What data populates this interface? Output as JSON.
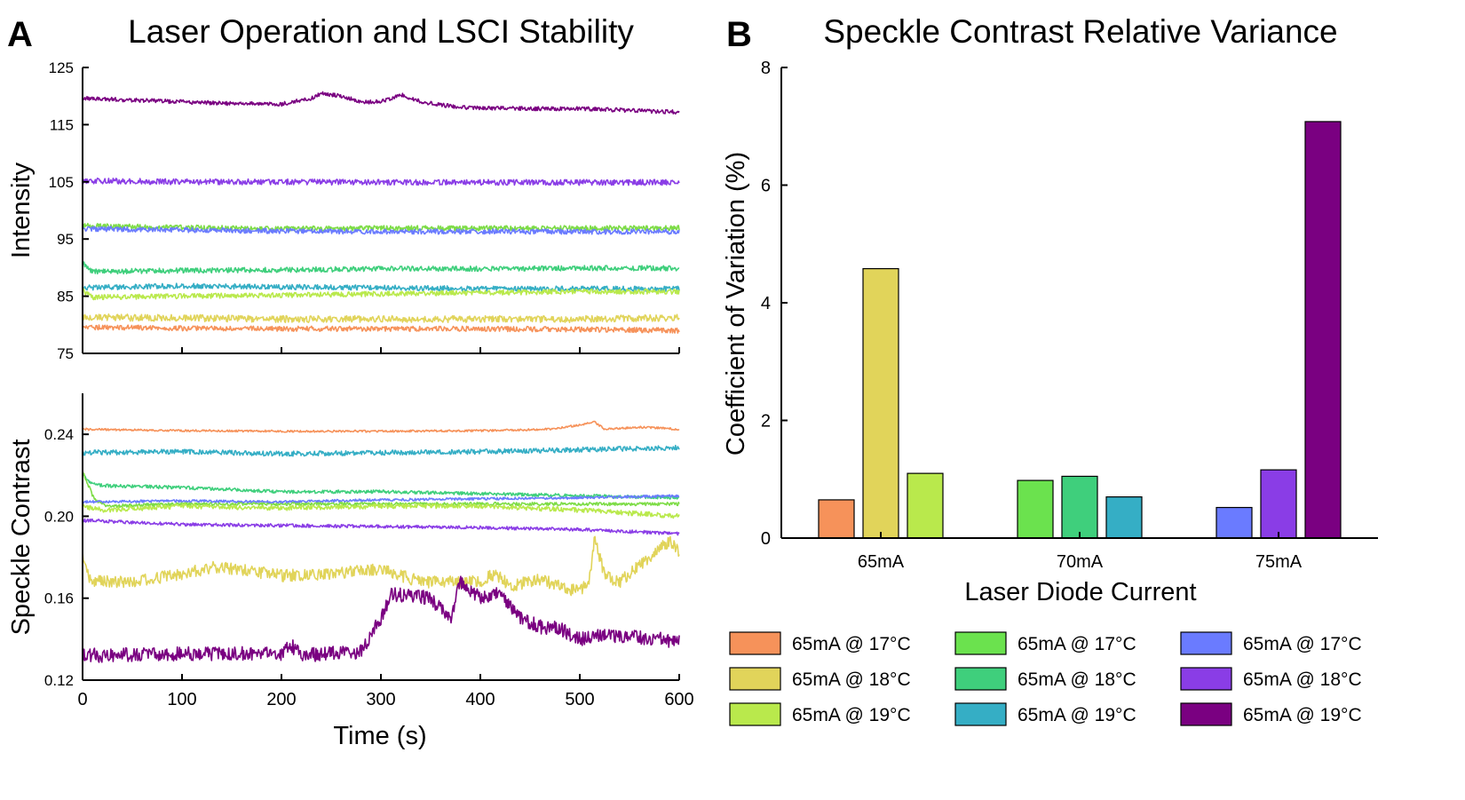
{
  "figure": {
    "panel_a_letter": "A",
    "panel_b_letter": "B"
  },
  "chart_data": [
    {
      "type": "line",
      "panel": "A (top)",
      "title": "Laser Operation and LSCI Stability",
      "xlabel": "",
      "ylabel": "Intensity",
      "xlim": [
        0,
        600
      ],
      "ylim": [
        75,
        125
      ],
      "xticks": [
        0,
        100,
        200,
        300,
        400,
        500,
        600
      ],
      "xtick_labels_shown": false,
      "yticks": [
        75,
        85,
        95,
        105,
        115,
        125
      ],
      "grid": false,
      "series": [
        {
          "color": "#7a0081",
          "points": [
            [
              0,
              119.6
            ],
            [
              50,
              119.3
            ],
            [
              100,
              119.0
            ],
            [
              150,
              118.7
            ],
            [
              200,
              118.6
            ],
            [
              230,
              119.6
            ],
            [
              240,
              120.5
            ],
            [
              260,
              120.0
            ],
            [
              280,
              119.0
            ],
            [
              300,
              119.0
            ],
            [
              310,
              119.6
            ],
            [
              320,
              120.3
            ],
            [
              340,
              119.0
            ],
            [
              380,
              118.0
            ],
            [
              450,
              117.8
            ],
            [
              500,
              117.8
            ],
            [
              550,
              117.5
            ],
            [
              600,
              117.2
            ]
          ],
          "noise": 0.35
        },
        {
          "color": "#8a3de6",
          "points": [
            [
              0,
              105.2
            ],
            [
              100,
              105.0
            ],
            [
              200,
              105.0
            ],
            [
              300,
              104.9
            ],
            [
              400,
              104.9
            ],
            [
              500,
              104.9
            ],
            [
              600,
              104.9
            ]
          ],
          "noise": 0.5
        },
        {
          "color": "#7ddc46",
          "points": [
            [
              0,
              97.3
            ],
            [
              100,
              97.0
            ],
            [
              200,
              96.8
            ],
            [
              300,
              96.9
            ],
            [
              400,
              96.9
            ],
            [
              500,
              96.9
            ],
            [
              600,
              96.9
            ]
          ],
          "noise": 0.45
        },
        {
          "color": "#6a7bff",
          "points": [
            [
              0,
              96.8
            ],
            [
              100,
              96.6
            ],
            [
              200,
              96.4
            ],
            [
              300,
              96.3
            ],
            [
              400,
              96.3
            ],
            [
              500,
              96.3
            ],
            [
              600,
              96.3
            ]
          ],
          "noise": 0.45
        },
        {
          "color": "#3fcf7c",
          "points": [
            [
              0,
              90.8
            ],
            [
              10,
              89.3
            ],
            [
              100,
              89.5
            ],
            [
              200,
              89.6
            ],
            [
              300,
              89.8
            ],
            [
              400,
              89.8
            ],
            [
              500,
              89.9
            ],
            [
              600,
              89.9
            ]
          ],
          "noise": 0.45
        },
        {
          "color": "#35aec5",
          "points": [
            [
              0,
              86.5
            ],
            [
              100,
              86.8
            ],
            [
              200,
              86.6
            ],
            [
              300,
              86.5
            ],
            [
              400,
              86.3
            ],
            [
              500,
              86.3
            ],
            [
              600,
              86.3
            ]
          ],
          "noise": 0.45
        },
        {
          "color": "#b9e94c",
          "points": [
            [
              0,
              86.0
            ],
            [
              10,
              84.8
            ],
            [
              100,
              85.0
            ],
            [
              200,
              85.2
            ],
            [
              300,
              85.4
            ],
            [
              400,
              85.6
            ],
            [
              500,
              85.8
            ],
            [
              600,
              85.8
            ]
          ],
          "noise": 0.45
        },
        {
          "color": "#e1d45a",
          "points": [
            [
              0,
              81.3
            ],
            [
              100,
              81.2
            ],
            [
              200,
              81.0
            ],
            [
              300,
              81.0
            ],
            [
              400,
              81.0
            ],
            [
              500,
              81.0
            ],
            [
              600,
              81.2
            ]
          ],
          "noise": 0.6
        },
        {
          "color": "#f6925a",
          "points": [
            [
              0,
              79.6
            ],
            [
              100,
              79.4
            ],
            [
              200,
              79.3
            ],
            [
              300,
              79.3
            ],
            [
              400,
              79.3
            ],
            [
              500,
              79.2
            ],
            [
              600,
              79.0
            ]
          ],
          "noise": 0.45
        }
      ]
    },
    {
      "type": "line",
      "panel": "A (bottom)",
      "title": "",
      "xlabel": "Time (s)",
      "ylabel": "Speckle Contrast",
      "xlim": [
        0,
        600
      ],
      "ylim": [
        0.12,
        0.26
      ],
      "xticks": [
        0,
        100,
        200,
        300,
        400,
        500,
        600
      ],
      "yticks": [
        0.12,
        0.16,
        0.2,
        0.24
      ],
      "ytick_labels": [
        "0.12",
        "0.16",
        "0.20",
        "0.24"
      ],
      "grid": false,
      "series": [
        {
          "color": "#f6925a",
          "points": [
            [
              0,
              0.2425
            ],
            [
              100,
              0.2418
            ],
            [
              200,
              0.2415
            ],
            [
              300,
              0.2415
            ],
            [
              400,
              0.2418
            ],
            [
              470,
              0.2425
            ],
            [
              500,
              0.2445
            ],
            [
              515,
              0.246
            ],
            [
              525,
              0.2425
            ],
            [
              560,
              0.2435
            ],
            [
              600,
              0.2425
            ]
          ],
          "noise": 0.0005
        },
        {
          "color": "#35aec5",
          "points": [
            [
              0,
              0.231
            ],
            [
              100,
              0.2315
            ],
            [
              200,
              0.2305
            ],
            [
              300,
              0.231
            ],
            [
              400,
              0.2315
            ],
            [
              500,
              0.2325
            ],
            [
              600,
              0.2335
            ]
          ],
          "noise": 0.0012
        },
        {
          "color": "#3fcf7c",
          "points": [
            [
              0,
              0.221
            ],
            [
              8,
              0.216
            ],
            [
              20,
              0.215
            ],
            [
              100,
              0.214
            ],
            [
              200,
              0.212
            ],
            [
              300,
              0.212
            ],
            [
              400,
              0.211
            ],
            [
              500,
              0.21
            ],
            [
              600,
              0.209
            ]
          ],
          "noise": 0.0008
        },
        {
          "color": "#7ddc46",
          "points": [
            [
              0,
              0.222
            ],
            [
              12,
              0.208
            ],
            [
              25,
              0.205
            ],
            [
              100,
              0.206
            ],
            [
              200,
              0.206
            ],
            [
              300,
              0.206
            ],
            [
              400,
              0.206
            ],
            [
              500,
              0.206
            ],
            [
              600,
              0.206
            ]
          ],
          "noise": 0.0008
        },
        {
          "color": "#6a7bff",
          "points": [
            [
              0,
              0.207
            ],
            [
              100,
              0.2075
            ],
            [
              200,
              0.207
            ],
            [
              300,
              0.208
            ],
            [
              400,
              0.2085
            ],
            [
              500,
              0.209
            ],
            [
              600,
              0.21
            ]
          ],
          "noise": 0.0006
        },
        {
          "color": "#b9e94c",
          "points": [
            [
              0,
              0.205
            ],
            [
              20,
              0.203
            ],
            [
              100,
              0.205
            ],
            [
              200,
              0.204
            ],
            [
              300,
              0.205
            ],
            [
              400,
              0.205
            ],
            [
              500,
              0.203
            ],
            [
              600,
              0.2
            ]
          ],
          "noise": 0.0012
        },
        {
          "color": "#8a3de6",
          "points": [
            [
              0,
              0.198
            ],
            [
              100,
              0.196
            ],
            [
              200,
              0.1955
            ],
            [
              300,
              0.195
            ],
            [
              400,
              0.1945
            ],
            [
              500,
              0.1935
            ],
            [
              600,
              0.1915
            ]
          ],
          "noise": 0.0008
        },
        {
          "color": "#e1d45a",
          "points": [
            [
              0,
              0.18
            ],
            [
              8,
              0.168
            ],
            [
              50,
              0.168
            ],
            [
              100,
              0.172
            ],
            [
              130,
              0.175
            ],
            [
              160,
              0.174
            ],
            [
              200,
              0.171
            ],
            [
              250,
              0.172
            ],
            [
              300,
              0.174
            ],
            [
              340,
              0.168
            ],
            [
              400,
              0.168
            ],
            [
              415,
              0.172
            ],
            [
              430,
              0.166
            ],
            [
              460,
              0.169
            ],
            [
              500,
              0.163
            ],
            [
              510,
              0.17
            ],
            [
              515,
              0.19
            ],
            [
              525,
              0.171
            ],
            [
              540,
              0.168
            ],
            [
              560,
              0.176
            ],
            [
              575,
              0.182
            ],
            [
              590,
              0.188
            ],
            [
              600,
              0.183
            ]
          ],
          "noise": 0.003
        },
        {
          "color": "#7a0081",
          "points": [
            [
              0,
              0.132
            ],
            [
              100,
              0.133
            ],
            [
              200,
              0.133
            ],
            [
              210,
              0.137
            ],
            [
              220,
              0.132
            ],
            [
              280,
              0.134
            ],
            [
              290,
              0.142
            ],
            [
              300,
              0.15
            ],
            [
              310,
              0.162
            ],
            [
              350,
              0.16
            ],
            [
              370,
              0.15
            ],
            [
              380,
              0.168
            ],
            [
              400,
              0.16
            ],
            [
              420,
              0.162
            ],
            [
              440,
              0.15
            ],
            [
              460,
              0.146
            ],
            [
              480,
              0.145
            ],
            [
              500,
              0.14
            ],
            [
              520,
              0.142
            ],
            [
              560,
              0.141
            ],
            [
              600,
              0.139
            ]
          ],
          "noise": 0.0035
        }
      ]
    },
    {
      "type": "bar",
      "panel": "B",
      "title": "Speckle Contrast Relative Variance",
      "xlabel": "Laser Diode Current",
      "ylabel": "Coefficient of Variation (%)",
      "categories": [
        "65mA",
        "70mA",
        "75mA"
      ],
      "ylim": [
        0,
        8
      ],
      "yticks": [
        0,
        2,
        4,
        6,
        8
      ],
      "legend_position": "below",
      "grid": false,
      "series": [
        {
          "name": "65mA @ 17°C",
          "category": "65mA",
          "value": 0.65,
          "color": "#f6925a"
        },
        {
          "name": "65mA @ 18°C",
          "category": "65mA",
          "value": 4.58,
          "color": "#e1d45a"
        },
        {
          "name": "65mA @ 19°C",
          "category": "65mA",
          "value": 1.1,
          "color": "#b9e94c"
        },
        {
          "name": "65mA @ 17°C",
          "category": "70mA",
          "value": 0.98,
          "color": "#6be24e"
        },
        {
          "name": "65mA @ 18°C",
          "category": "70mA",
          "value": 1.05,
          "color": "#3fcf7c"
        },
        {
          "name": "65mA @ 19°C",
          "category": "70mA",
          "value": 0.7,
          "color": "#35aec5"
        },
        {
          "name": "65mA @ 17°C",
          "category": "75mA",
          "value": 0.52,
          "color": "#6a7bff"
        },
        {
          "name": "65mA @ 18°C",
          "category": "75mA",
          "value": 1.16,
          "color": "#8a3de6"
        },
        {
          "name": "65mA @ 19°C",
          "category": "75mA",
          "value": 7.08,
          "color": "#7a0081"
        }
      ]
    }
  ]
}
